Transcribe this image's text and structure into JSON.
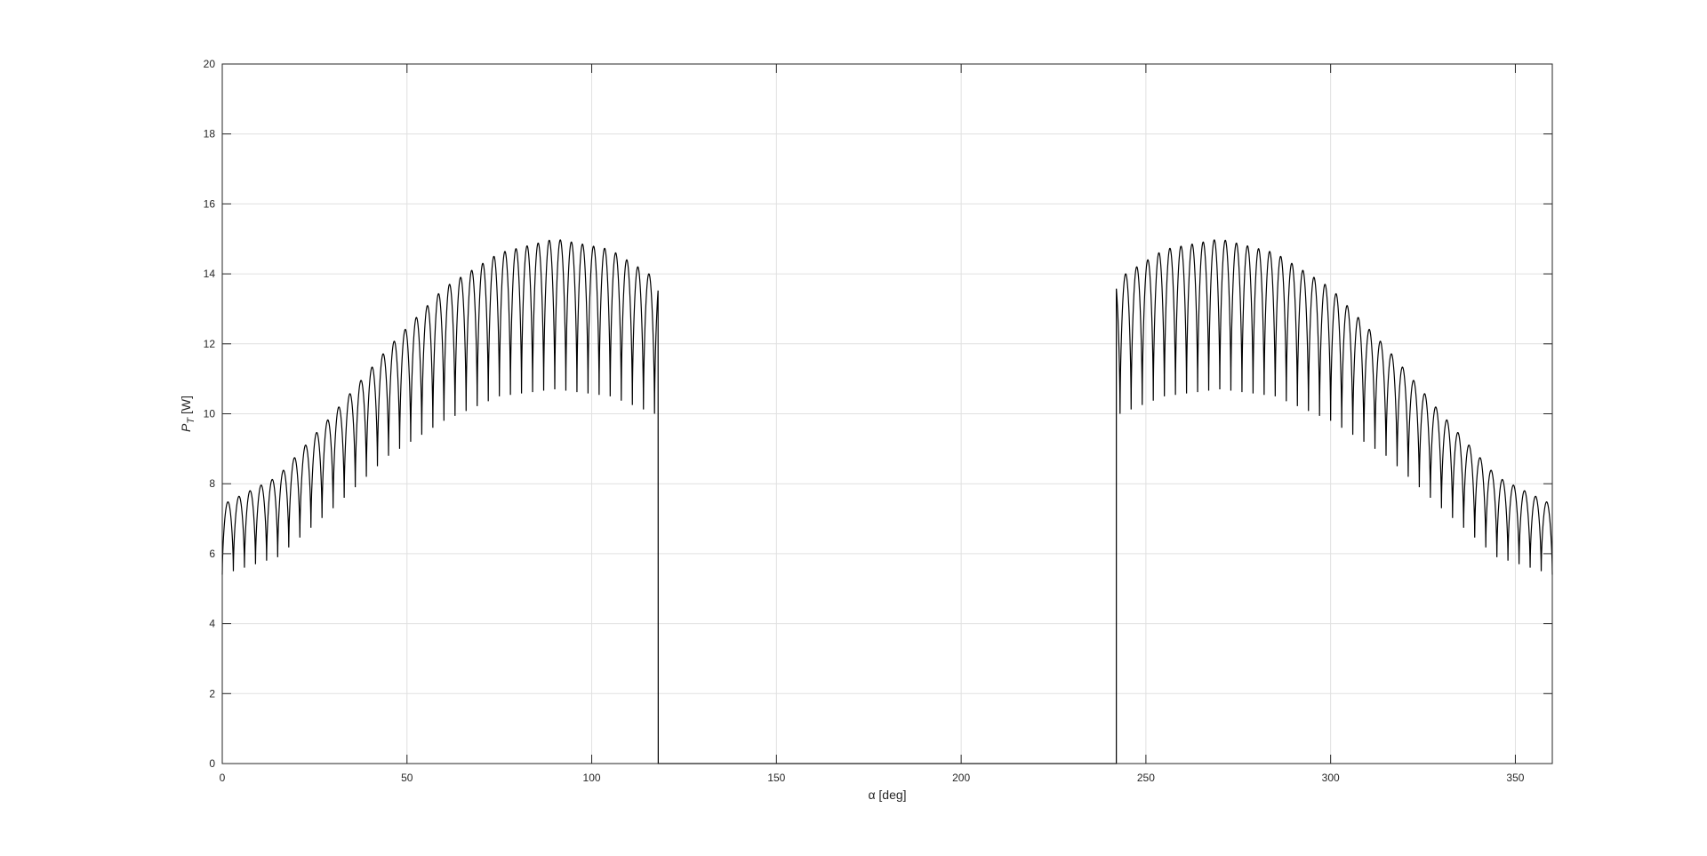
{
  "chart_data": {
    "type": "line",
    "title": "",
    "xlabel": "α [deg]",
    "ylabel": "P_T [W]",
    "ylabel_main": "P",
    "ylabel_sub": "T",
    "ylabel_unit": " [W]",
    "xlim": [
      0,
      360
    ],
    "ylim": [
      0,
      20
    ],
    "x_ticks": [
      0,
      50,
      100,
      150,
      200,
      250,
      300,
      350
    ],
    "y_ticks": [
      0,
      2,
      4,
      6,
      8,
      10,
      12,
      14,
      16,
      18,
      20
    ],
    "x_tick_labels": [
      "0",
      "50",
      "100",
      "150",
      "200",
      "250",
      "300",
      "350"
    ],
    "y_tick_labels": [
      "0",
      "2",
      "4",
      "6",
      "8",
      "10",
      "12",
      "14",
      "16",
      "18",
      "20"
    ],
    "grid": true,
    "legend": "none",
    "line_color": "#000000",
    "grid_color": "#e0e0e0",
    "axis_color": "#262626",
    "ripple_period_deg": 3,
    "zero_interval_deg": [
      118,
      242
    ],
    "series": [
      {
        "envelope_alpha_deg": [
          0,
          15,
          30,
          45,
          60,
          75,
          90,
          105,
          117
        ],
        "envelope_upper_W": [
          7.4,
          8.2,
          10.0,
          11.9,
          13.6,
          14.6,
          15.0,
          14.7,
          13.9
        ],
        "envelope_lower_W": [
          5.4,
          5.9,
          7.3,
          8.8,
          9.8,
          10.5,
          10.7,
          10.5,
          10.0
        ],
        "envelope_mirrored_about_deg": 180
      }
    ]
  }
}
